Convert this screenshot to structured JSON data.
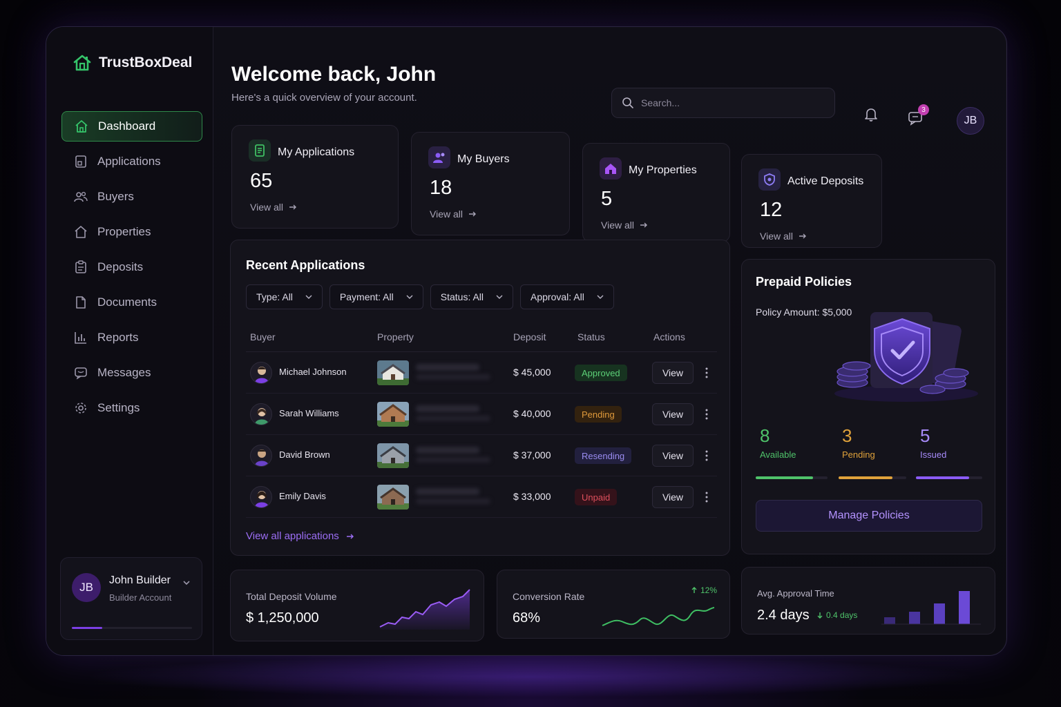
{
  "brand": {
    "name": "TrustBoxDeal",
    "accent": "#35c46a"
  },
  "sidebar": {
    "items": [
      {
        "label": "Dashboard",
        "icon": "home-icon",
        "active": true
      },
      {
        "label": "Applications",
        "icon": "applications-icon"
      },
      {
        "label": "Buyers",
        "icon": "users-icon"
      },
      {
        "label": "Properties",
        "icon": "house-outline-icon"
      },
      {
        "label": "Deposits",
        "icon": "clipboard-icon"
      },
      {
        "label": "Documents",
        "icon": "document-icon"
      },
      {
        "label": "Reports",
        "icon": "bar-chart-icon"
      },
      {
        "label": "Messages",
        "icon": "message-icon"
      },
      {
        "label": "Settings",
        "icon": "gear-icon"
      }
    ],
    "user": {
      "initials": "JB",
      "name": "John Builder",
      "role": "Builder Account",
      "progress": 0.25
    }
  },
  "header": {
    "title": "Welcome back, John",
    "subtitle": "Here's a quick overview of your account.",
    "search_placeholder": "Search...",
    "messages_badge": "3",
    "avatar_initials": "JB"
  },
  "stats": [
    {
      "title": "My Applications",
      "value": "65",
      "link": "View all",
      "icon": "document-list-icon",
      "color": "#3fbf63"
    },
    {
      "title": "My Buyers",
      "value": "18",
      "link": "View all",
      "icon": "users-icon",
      "color": "#8b5cf6"
    },
    {
      "title": "My Properties",
      "value": "5",
      "link": "View all",
      "icon": "house-icon",
      "color": "#a855f7"
    },
    {
      "title": "Active Deposits",
      "value": "12",
      "link": "View all",
      "icon": "shield-icon",
      "color": "#7c6cf0"
    }
  ],
  "recent": {
    "title": "Recent Applications",
    "filters": [
      "Type: All",
      "Payment: All",
      "Status: All",
      "Approval: All"
    ],
    "columns": [
      "Buyer",
      "Property",
      "Deposit",
      "Status",
      "Actions"
    ],
    "rows": [
      {
        "buyer": "Michael Johnson",
        "deposit": "$ 45,000",
        "status": "Approved",
        "status_class": "st-approved",
        "action": "View"
      },
      {
        "buyer": "Sarah Williams",
        "deposit": "$ 40,000",
        "status": "Pending",
        "status_class": "st-pending",
        "action": "View"
      },
      {
        "buyer": "David Brown",
        "deposit": "$ 37,000",
        "status": "Resending",
        "status_class": "st-resending",
        "action": "View"
      },
      {
        "buyer": "Emily Davis",
        "deposit": "$ 33,000",
        "status": "Unpaid",
        "status_class": "st-unpaid",
        "action": "View"
      }
    ],
    "view_all": "View all applications"
  },
  "policies": {
    "title": "Prepaid Policies",
    "amount": "Policy Amount: $5,000",
    "stats": [
      {
        "value": "8",
        "label": "Available",
        "color": "#4fc36a",
        "fill": 0.8
      },
      {
        "value": "3",
        "label": "Pending",
        "color": "#e0a23b",
        "fill": 0.8
      },
      {
        "value": "5",
        "label": "Issued",
        "color": "#8b5cf6",
        "fill": 0.8
      }
    ],
    "button": "Manage Policies"
  },
  "kpis": {
    "total_deposit": {
      "label": "Total Deposit Volume",
      "value": "$ 1,250,000"
    },
    "conversion": {
      "label": "Conversion Rate",
      "value": "68%",
      "change": "12%"
    },
    "approval": {
      "label": "Avg. Approval Time",
      "value": "2.4 days",
      "change": "0.4 days"
    }
  }
}
